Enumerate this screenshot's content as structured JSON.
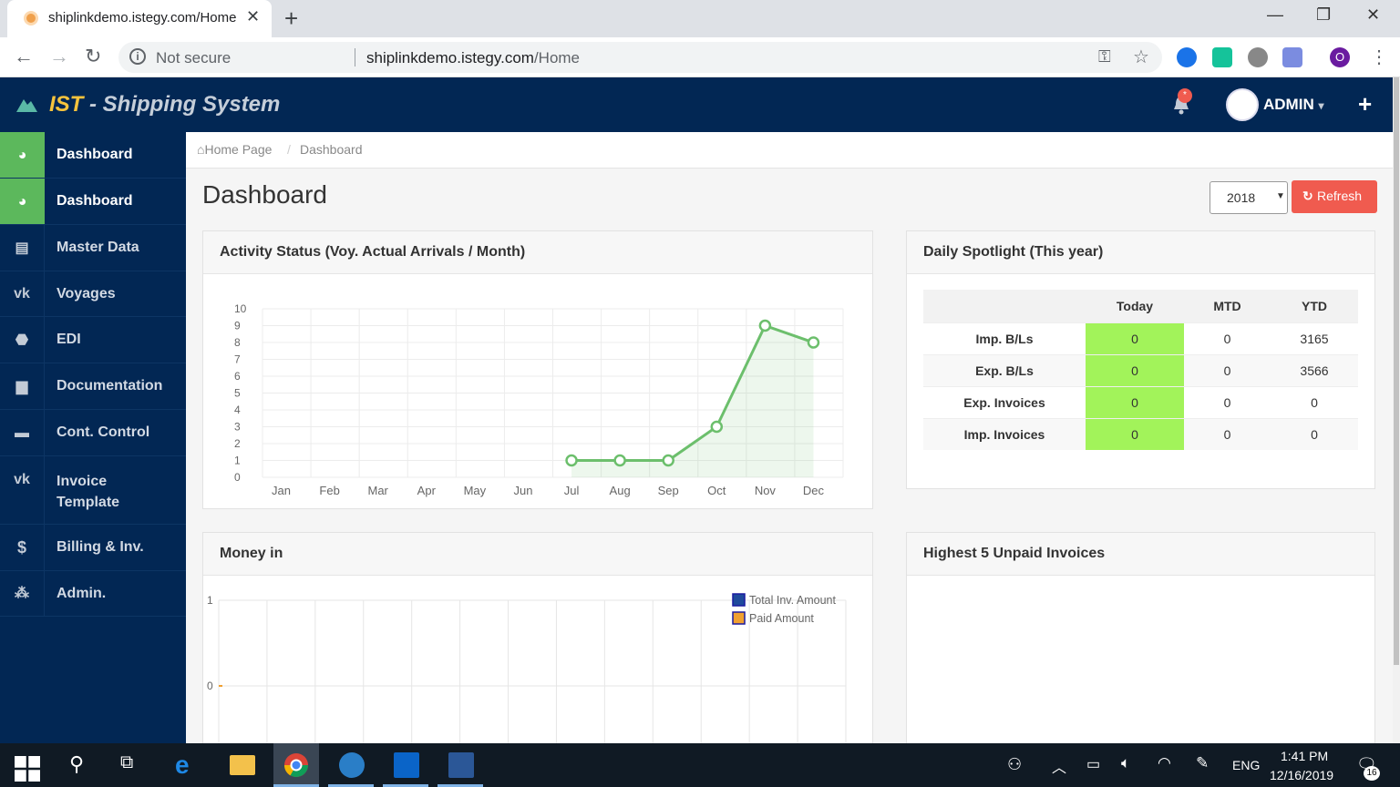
{
  "browser": {
    "tab_title": "shiplinkdemo.istegy.com/Home",
    "security_label": "Not secure",
    "url_host": "shiplinkdemo.istegy.com",
    "url_path": "/Home",
    "profile_initial": "O"
  },
  "header": {
    "title_brand": "IST",
    "title_rest": " - Shipping System",
    "notification_badge": "*",
    "user_label": "ADMIN",
    "user_caret": "▾",
    "plus_label": "+"
  },
  "sidebar": {
    "items": [
      {
        "label": "Dashboard",
        "icon": "dashboard-icon"
      },
      {
        "label": "Dashboard",
        "icon": "dashboard-icon"
      },
      {
        "label": "Master Data",
        "icon": "list-icon"
      },
      {
        "label": "Voyages",
        "icon": "vk-icon"
      },
      {
        "label": "EDI",
        "icon": "android-icon"
      },
      {
        "label": "Documentation",
        "icon": "document-icon"
      },
      {
        "label": "Cont. Control",
        "icon": "archive-icon"
      },
      {
        "label": "Invoice Template",
        "icon": "vk-icon"
      },
      {
        "label": "Billing & Inv.",
        "icon": "dollar-icon"
      },
      {
        "label": "Admin.",
        "icon": "sitemap-icon"
      }
    ]
  },
  "breadcrumb": {
    "home": "Home Page",
    "separator": "/",
    "current": "Dashboard"
  },
  "page": {
    "title": "Dashboard",
    "year": "2018",
    "refresh_label": "Refresh"
  },
  "activity": {
    "title": "Activity Status (Voy. Actual Arrivals / Month)"
  },
  "spotlight": {
    "title": "Daily Spotlight (This year)",
    "columns": [
      "",
      "Today",
      "MTD",
      "YTD"
    ],
    "rows": [
      [
        "Imp. B/Ls",
        "0",
        "0",
        "3165"
      ],
      [
        "Exp. B/Ls",
        "0",
        "0",
        "3566"
      ],
      [
        "Exp. Invoices",
        "0",
        "0",
        "0"
      ],
      [
        "Imp. Invoices",
        "0",
        "0",
        "0"
      ]
    ]
  },
  "money": {
    "title": "Money in"
  },
  "unpaid": {
    "title": "Highest 5 Unpaid Invoices"
  },
  "chart_data": [
    {
      "type": "line",
      "title": "",
      "xlabel": "",
      "ylabel": "",
      "categories": [
        "Jan",
        "Feb",
        "Mar",
        "Apr",
        "May",
        "Jun",
        "Jul",
        "Aug",
        "Sep",
        "Oct",
        "Nov",
        "Dec"
      ],
      "series": [
        {
          "values": [
            null,
            null,
            null,
            null,
            null,
            null,
            1,
            1,
            1,
            3,
            9,
            8
          ]
        }
      ],
      "ylim": [
        0,
        10
      ],
      "yticks": [
        "0",
        "1",
        "2",
        "3",
        "4",
        "5",
        "6",
        "7",
        "8",
        "9",
        "10"
      ],
      "grid": true,
      "color": "#6cbf6c"
    },
    {
      "type": "bar",
      "title": "",
      "categories": [],
      "series": [
        {
          "name": "Total Inv. Amount",
          "values": [],
          "color": "#1f4a9c"
        },
        {
          "name": "Paid Amount",
          "values": [],
          "color": "#f0a030"
        }
      ],
      "yticks": [
        "1",
        "0"
      ],
      "ylim": [
        0,
        1
      ],
      "legend": "top-right",
      "grid": true
    }
  ],
  "taskbar": {
    "language": "ENG",
    "time": "1:41 PM",
    "date": "12/16/2019",
    "notifications": "16"
  }
}
